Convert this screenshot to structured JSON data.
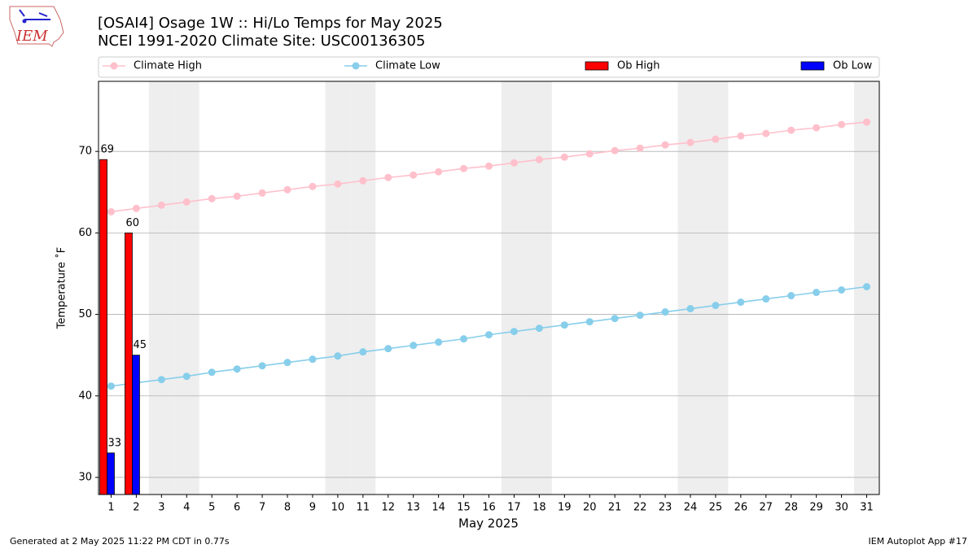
{
  "logo": "IEM",
  "footer": {
    "left": "Generated at 2 May 2025 11:22 PM CDT in 0.77s",
    "right": "IEM Autoplot App #17"
  },
  "chart_data": {
    "type": "bar",
    "title": "[OSAI4] Osage 1W :: Hi/Lo Temps for May 2025",
    "subtitle": "NCEI 1991-2020 Climate Site: USC00136305",
    "x_label": "May 2025",
    "y_label": "Temperature ˚F",
    "x": [
      1,
      2,
      3,
      4,
      5,
      6,
      7,
      8,
      9,
      10,
      11,
      12,
      13,
      14,
      15,
      16,
      17,
      18,
      19,
      20,
      21,
      22,
      23,
      24,
      25,
      26,
      27,
      28,
      29,
      30,
      31
    ],
    "xlim": [
      0.5,
      31.5
    ],
    "xticks": [
      1,
      2,
      3,
      4,
      5,
      6,
      7,
      8,
      9,
      10,
      11,
      12,
      13,
      14,
      15,
      16,
      17,
      18,
      19,
      20,
      21,
      22,
      23,
      24,
      25,
      26,
      27,
      28,
      29,
      30,
      31
    ],
    "ylim": [
      27.9,
      78.6
    ],
    "yticks": [
      30,
      40,
      50,
      60,
      70
    ],
    "grid": true,
    "shaded_days": [
      3,
      4,
      10,
      11,
      17,
      18,
      24,
      25,
      31
    ],
    "shade_color": "#eeeeee",
    "series": [
      {
        "name": "Climate High",
        "type": "line",
        "color": "#ffc0cb",
        "values": [
          62.6,
          63.0,
          63.4,
          63.8,
          64.2,
          64.5,
          64.9,
          65.3,
          65.7,
          66.0,
          66.4,
          66.8,
          67.1,
          67.5,
          67.9,
          68.2,
          68.6,
          69.0,
          69.3,
          69.7,
          70.1,
          70.4,
          70.8,
          71.1,
          71.5,
          71.9,
          72.2,
          72.6,
          72.9,
          73.3,
          73.6
        ]
      },
      {
        "name": "Climate Low",
        "type": "line",
        "color": "#87ceeb",
        "values": [
          41.2,
          41.6,
          42.0,
          42.4,
          42.9,
          43.3,
          43.7,
          44.1,
          44.5,
          44.9,
          45.4,
          45.8,
          46.2,
          46.6,
          47.0,
          47.5,
          47.9,
          48.3,
          48.7,
          49.1,
          49.5,
          49.9,
          50.3,
          50.7,
          51.1,
          51.5,
          51.9,
          52.3,
          52.7,
          53.0,
          53.4
        ]
      },
      {
        "name": "Ob High",
        "type": "bar",
        "color": "#ff0000",
        "values": [
          69,
          60,
          null,
          null,
          null,
          null,
          null,
          null,
          null,
          null,
          null,
          null,
          null,
          null,
          null,
          null,
          null,
          null,
          null,
          null,
          null,
          null,
          null,
          null,
          null,
          null,
          null,
          null,
          null,
          null,
          null
        ]
      },
      {
        "name": "Ob Low",
        "type": "bar",
        "color": "#0000ff",
        "values": [
          33,
          45,
          null,
          null,
          null,
          null,
          null,
          null,
          null,
          null,
          null,
          null,
          null,
          null,
          null,
          null,
          null,
          null,
          null,
          null,
          null,
          null,
          null,
          null,
          null,
          null,
          null,
          null,
          null,
          null,
          null
        ]
      }
    ]
  }
}
